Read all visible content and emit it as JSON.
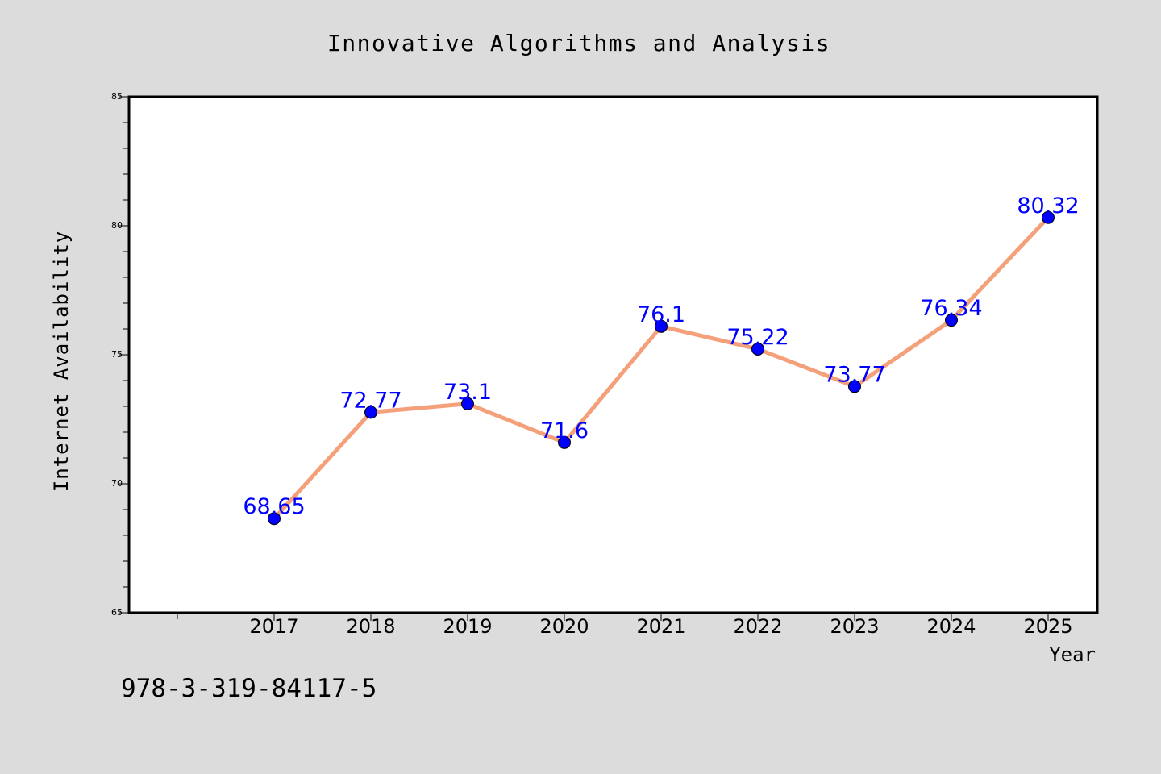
{
  "chart_data": {
    "type": "line",
    "title": "Innovative Algorithms and Analysis",
    "xlabel": "Year",
    "ylabel": "Internet Availability",
    "categories": [
      "2017",
      "2018",
      "2019",
      "2020",
      "2021",
      "2022",
      "2023",
      "2024",
      "2025"
    ],
    "series": [
      {
        "values": [
          68.65,
          72.77,
          73.1,
          71.6,
          76.1,
          75.22,
          73.77,
          76.34,
          80.32
        ],
        "value_labels": [
          "68.65",
          "72.77",
          "73.1",
          "71.6",
          "76.1",
          "75.22",
          "73.77",
          "76.34",
          "80.32"
        ]
      }
    ],
    "ylim": [
      65,
      85
    ],
    "yticks": [
      "65",
      "70",
      "75",
      "80",
      "85"
    ],
    "grid": false,
    "legend": "none",
    "colors": {
      "figure_bg": "#dcdcdc",
      "plot_bg": "#ffffff",
      "line": "#f4a07a",
      "marker": "#0000ff",
      "data_label": "#0000ff",
      "text": "#000000"
    }
  },
  "annotation": "978-3-319-84117-5"
}
